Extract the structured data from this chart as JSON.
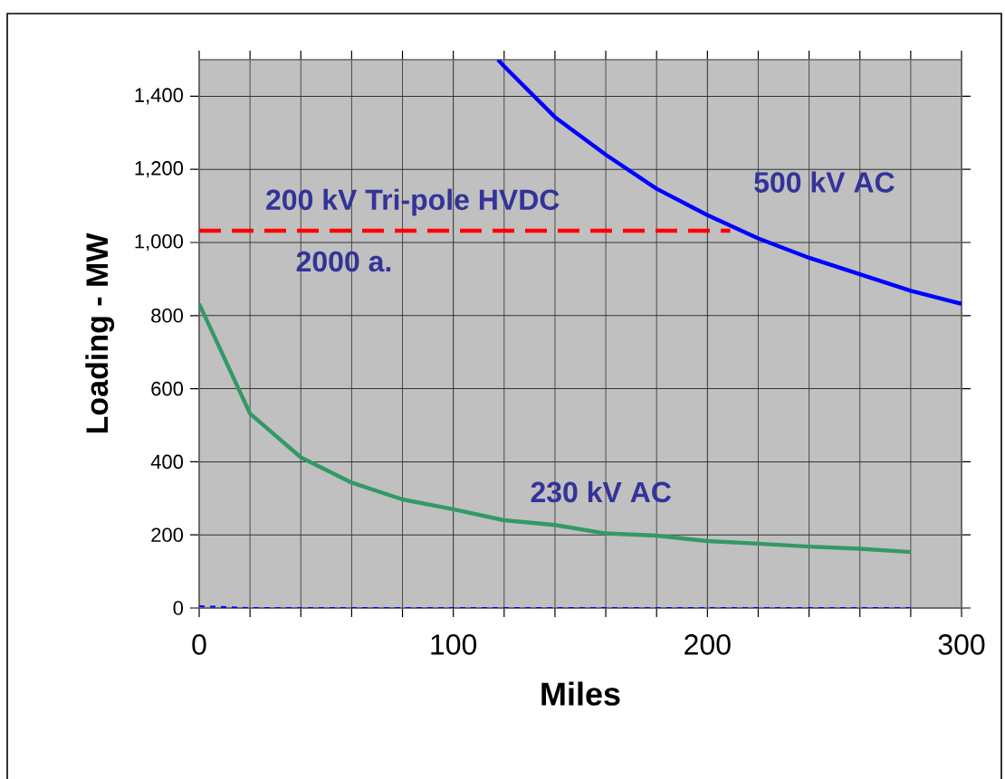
{
  "chart_data": {
    "type": "line",
    "xlabel": "Miles",
    "ylabel": "Loading - MW",
    "xlim": [
      0,
      300
    ],
    "ylim": [
      0,
      1500
    ],
    "xticks": [
      0,
      100,
      200,
      300
    ],
    "yticks": [
      0,
      200,
      400,
      600,
      800,
      {
        "value": 1000,
        "label": "1,000"
      },
      {
        "value": 1200,
        "label": "1,200"
      },
      {
        "value": 1400,
        "label": "1,400"
      }
    ],
    "grid": true,
    "marker": "none",
    "line_style": "solid",
    "series": [
      {
        "name": "500 kV AC",
        "color": "#0000ff",
        "x": [
          117.6,
          120,
          140,
          160,
          180,
          200,
          220,
          240,
          260,
          280,
          300
        ],
        "values": [
          1500,
          1482,
          1343,
          1240,
          1147,
          1075,
          1011,
          958,
          913,
          868,
          832
        ]
      },
      {
        "name": "230 kV AC",
        "color": "#339966",
        "x": [
          0,
          20,
          40,
          60,
          80,
          100,
          120,
          140,
          160,
          180,
          200,
          220,
          240,
          260,
          280
        ],
        "values": [
          832,
          532,
          412,
          343,
          297,
          270,
          240,
          227,
          204,
          198,
          183,
          176,
          168,
          162,
          153
        ]
      },
      {
        "name": "200  kV  Tri-pole HVDC",
        "color": "#ff0000",
        "line_style": "dashed",
        "x": [
          0,
          209
        ],
        "values": [
          1032,
          1032
        ]
      },
      {
        "color": "#0000ff",
        "line_style": "dashed",
        "x": [
          0,
          20,
          280
        ],
        "values": [
          5,
          0,
          0
        ]
      }
    ],
    "annotations": [
      "2000 a."
    ]
  }
}
